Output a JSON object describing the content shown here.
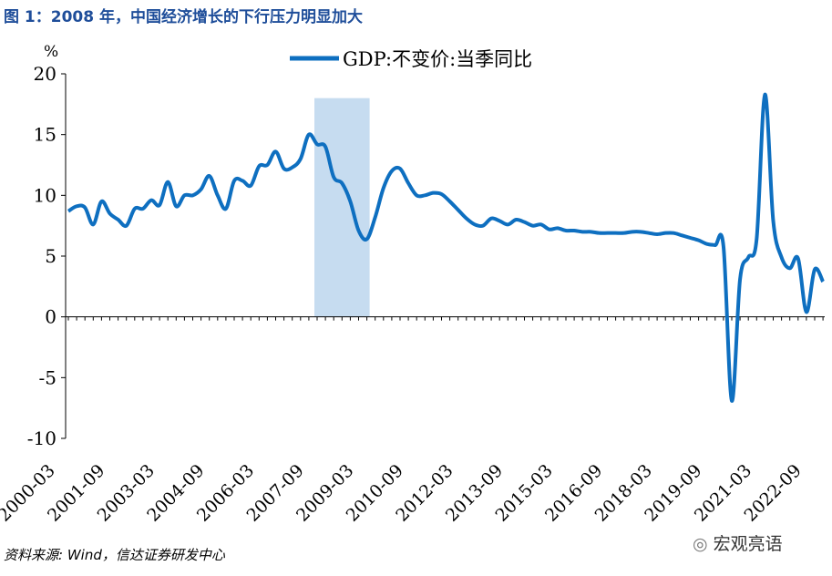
{
  "title": "图 1：2008 年，中国经济增长的下行压力明显加大",
  "source": "资料来源: Wind，信达证券研发中心",
  "watermark": "宏观亮语",
  "colors": {
    "line": "#0e6fc0",
    "shade": "#c6dcf0",
    "title": "#1f4e9a"
  },
  "chart_data": {
    "type": "line",
    "title": "图 1：2008 年，中国经济增长的下行压力明显加大",
    "ylabel": "%",
    "ylim": [
      -10,
      20
    ],
    "yticks": [
      20,
      15,
      10,
      5,
      0,
      -5,
      -10
    ],
    "xtick_labels": [
      "2000-03",
      "2001-09",
      "2003-03",
      "2004-09",
      "2006-03",
      "2007-09",
      "2009-03",
      "2010-09",
      "2012-03",
      "2013-09",
      "2015-03",
      "2016-09",
      "2018-03",
      "2019-09",
      "2021-03",
      "2022-09"
    ],
    "shaded_range": [
      "2007-09",
      "2009-03"
    ],
    "series": [
      {
        "name": "GDP:不变价:当季同比",
        "start": "2000-03",
        "frequency": "quarterly",
        "values": [
          8.7,
          9.1,
          9.0,
          7.6,
          9.5,
          8.5,
          8.0,
          7.5,
          8.9,
          8.9,
          9.6,
          9.2,
          11.1,
          9.1,
          10.0,
          10.0,
          10.5,
          11.6,
          10.0,
          8.9,
          11.2,
          11.2,
          10.8,
          12.4,
          12.5,
          13.6,
          12.2,
          12.3,
          13.0,
          15.0,
          14.2,
          14.0,
          11.5,
          11.0,
          9.5,
          7.1,
          6.4,
          8.2,
          10.6,
          12.0,
          12.2,
          11.0,
          10.0,
          10.0,
          10.2,
          10.1,
          9.5,
          8.8,
          8.1,
          7.6,
          7.5,
          8.1,
          7.9,
          7.6,
          8.0,
          7.8,
          7.5,
          7.6,
          7.2,
          7.3,
          7.1,
          7.1,
          7.0,
          7.0,
          6.9,
          6.9,
          6.9,
          6.9,
          7.0,
          7.0,
          6.9,
          6.8,
          6.9,
          6.9,
          6.7,
          6.5,
          6.3,
          6.0,
          5.9,
          5.8,
          -6.9,
          3.1,
          4.9,
          6.4,
          18.3,
          7.9,
          4.9,
          4.0,
          4.8,
          0.4,
          3.9,
          2.9
        ]
      }
    ]
  }
}
